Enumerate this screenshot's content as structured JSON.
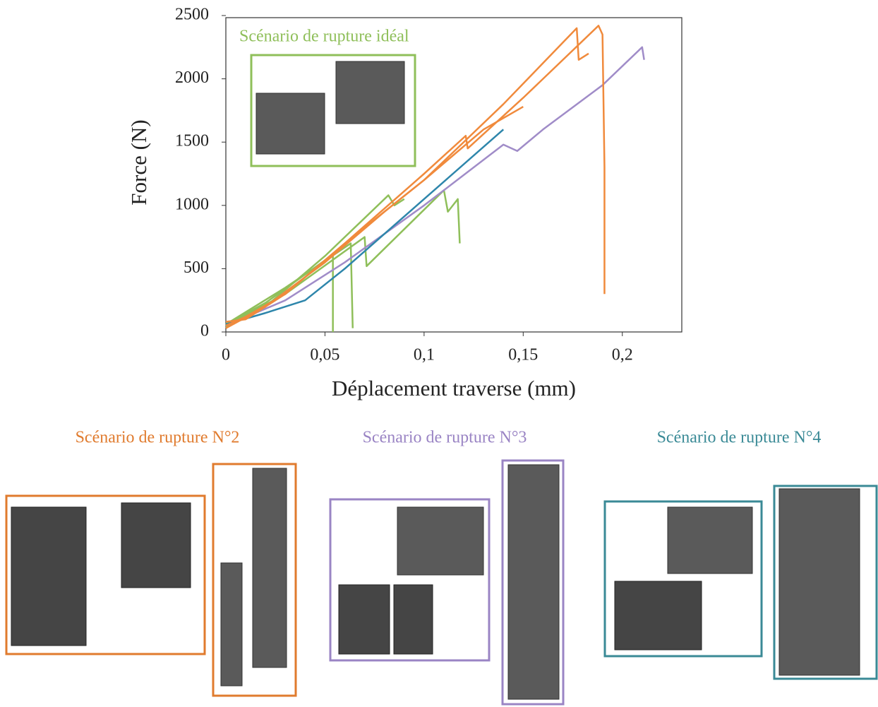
{
  "chart_data": {
    "type": "line",
    "x_label": "Déplacement traverse (mm)",
    "y_label": "Force (N)",
    "xlim": [
      0,
      0.23
    ],
    "ylim": [
      0,
      2500
    ],
    "xticks": [
      0,
      {
        "value": 0.05,
        "label": "0,05"
      },
      {
        "value": 0.1,
        "label": "0,1"
      },
      {
        "value": 0.15,
        "label": "0,15"
      },
      {
        "value": 0.2,
        "label": "0,2"
      }
    ],
    "yticks": [
      0,
      500,
      1000,
      1500,
      2000,
      2500
    ],
    "series": [
      {
        "color": "#8fbf5a",
        "x": [
          0,
          0.02,
          0.05,
          0.082,
          0.085,
          0.09
        ],
        "values": [
          40,
          200,
          600,
          1080,
          1000,
          1050
        ]
      },
      {
        "color": "#8fbf5a",
        "x": [
          0,
          0.02,
          0.053,
          0.054,
          0.054
        ],
        "values": [
          60,
          230,
          600,
          600,
          0
        ]
      },
      {
        "color": "#8fbf5a",
        "x": [
          0,
          0.03,
          0.063,
          0.064
        ],
        "values": [
          60,
          350,
          700,
          30
        ]
      },
      {
        "color": "#8fbf5a",
        "x": [
          0,
          0.03,
          0.07,
          0.071,
          0.11,
          0.112,
          0.117,
          0.118
        ],
        "values": [
          50,
          300,
          750,
          520,
          1120,
          950,
          1050,
          700
        ]
      },
      {
        "color": "#a08cc8",
        "x": [
          0,
          0.03,
          0.06,
          0.1,
          0.14,
          0.147,
          0.16,
          0.19,
          0.21,
          0.211
        ],
        "values": [
          50,
          250,
          550,
          1000,
          1480,
          1430,
          1600,
          1950,
          2250,
          2150
        ]
      },
      {
        "color": "#2e86ab",
        "x": [
          0,
          0.02,
          0.04,
          0.06,
          0.1,
          0.14
        ],
        "values": [
          60,
          150,
          250,
          500,
          1050,
          1600
        ]
      },
      {
        "color": "#f08a3c",
        "x": [
          0,
          0.02,
          0.05,
          0.08,
          0.1,
          0.13,
          0.15
        ],
        "values": [
          30,
          200,
          550,
          950,
          1200,
          1600,
          1780
        ]
      },
      {
        "color": "#f08a3c",
        "x": [
          0,
          0.01,
          0.03,
          0.06,
          0.1,
          0.14,
          0.177,
          0.178,
          0.183
        ],
        "values": [
          50,
          120,
          300,
          700,
          1200,
          1800,
          2400,
          2150,
          2200
        ]
      },
      {
        "color": "#f08a3c",
        "x": [
          0,
          0.01,
          0.03,
          0.06,
          0.1,
          0.121,
          0.122,
          0.15,
          0.188,
          0.19,
          0.191,
          0.191
        ],
        "values": [
          80,
          100,
          300,
          700,
          1250,
          1550,
          1450,
          1850,
          2420,
          2350,
          1300,
          300
        ]
      }
    ],
    "annotations": [
      {
        "text": "Scénario de rupture idéal",
        "color": "#8fbf5a"
      },
      {
        "text": "Scénario de rupture N°2",
        "color": "#e07b2e"
      },
      {
        "text": "Scénario de rupture N°3",
        "color": "#9a84c4"
      },
      {
        "text": "Scénario de rupture N°4",
        "color": "#3a8a96"
      }
    ]
  }
}
